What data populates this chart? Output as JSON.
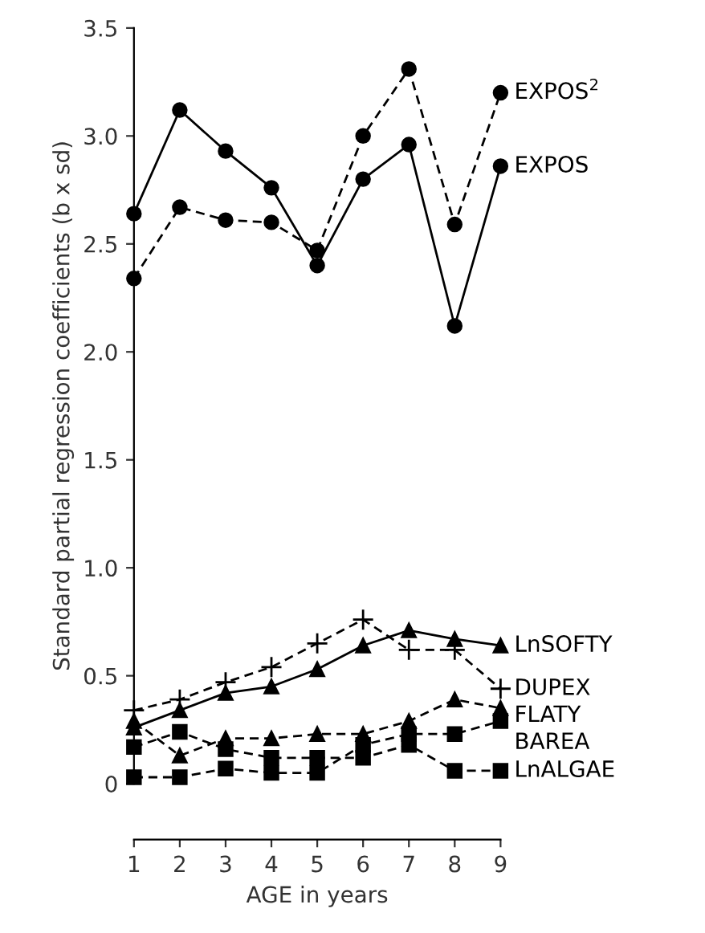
{
  "chart_data": {
    "type": "line",
    "xlabel": "AGE in years",
    "ylabel": "Standard partial regression coefficients (b x sd)",
    "x": [
      1,
      2,
      3,
      4,
      5,
      6,
      7,
      8,
      9
    ],
    "xlim": [
      1,
      9
    ],
    "xticks": [
      1,
      2,
      3,
      4,
      5,
      6,
      7,
      8,
      9
    ],
    "ylim": [
      0,
      3.5
    ],
    "yticks": [
      {
        "value": 0,
        "label": "0"
      },
      {
        "value": 0.5,
        "label": "0.5"
      },
      {
        "value": 1.0,
        "label": "1.0"
      },
      {
        "value": 1.5,
        "label": "1.5"
      },
      {
        "value": 2.0,
        "label": "2.0"
      },
      {
        "value": 2.5,
        "label": "2.5"
      },
      {
        "value": 3.0,
        "label": "3.0"
      },
      {
        "value": 3.5,
        "label": "3.5"
      }
    ],
    "grid": false,
    "legend": false,
    "series": [
      {
        "name": "EXPOS$^{2}$",
        "color": "#000000",
        "marker": "circle",
        "line_style": "dashed",
        "values": [
          2.34,
          2.67,
          2.61,
          2.6,
          2.47,
          3.0,
          3.31,
          2.59,
          3.2
        ]
      },
      {
        "name": "EXPOS",
        "color": "#000000",
        "marker": "circle",
        "line_style": "solid",
        "values": [
          2.64,
          3.12,
          2.93,
          2.76,
          2.4,
          2.8,
          2.96,
          2.12,
          2.86
        ]
      },
      {
        "name": "LnSOFTY",
        "color": "#000000",
        "marker": "triangle",
        "line_style": "solid",
        "values": [
          0.26,
          0.34,
          0.42,
          0.45,
          0.53,
          0.64,
          0.71,
          0.67,
          0.64
        ]
      },
      {
        "name": "DUPEX",
        "color": "#000000",
        "marker": "cross",
        "line_style": "dashed",
        "values": [
          0.34,
          0.39,
          0.47,
          0.54,
          0.65,
          0.76,
          0.62,
          0.62,
          0.44
        ]
      },
      {
        "name": "FLATY",
        "color": "#000000",
        "marker": "triangle",
        "line_style": "dashed",
        "values": [
          0.29,
          0.13,
          0.21,
          0.21,
          0.23,
          0.23,
          0.29,
          0.39,
          0.35
        ]
      },
      {
        "name": "BAREA",
        "color": "#000000",
        "marker": "square",
        "line_style": "dashed",
        "values": [
          0.03,
          0.03,
          0.07,
          0.05,
          0.05,
          0.18,
          0.23,
          0.23,
          0.29
        ]
      },
      {
        "name": "LnALGAE",
        "color": "#000000",
        "marker": "square",
        "line_style": "dashed",
        "values": [
          0.17,
          0.24,
          0.16,
          0.12,
          0.12,
          0.12,
          0.18,
          0.06,
          0.06
        ]
      }
    ]
  }
}
